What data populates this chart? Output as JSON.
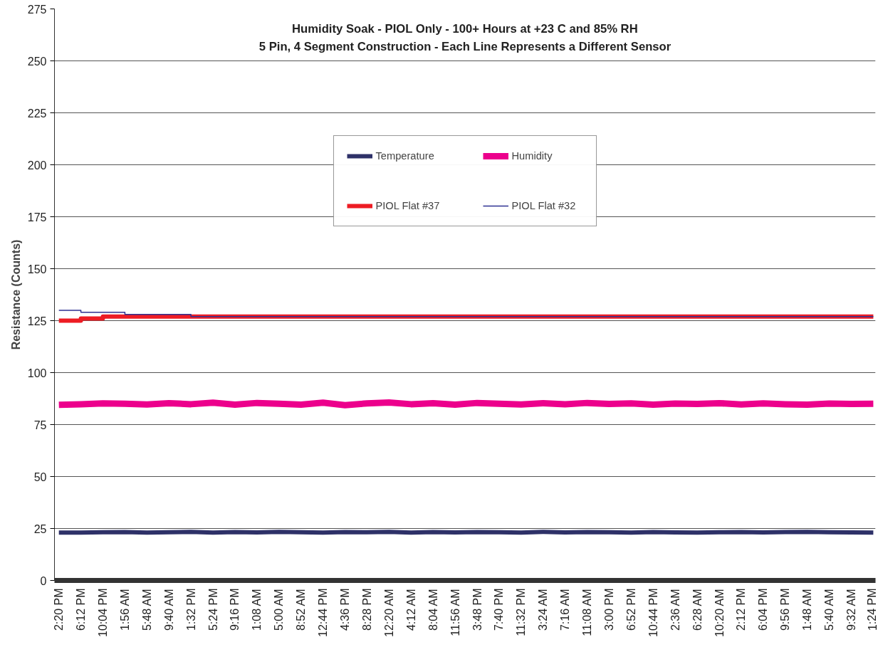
{
  "chart_data": {
    "type": "line",
    "title": "Humidity Soak - PIOL Only - 100+ Hours at +23 C and 85% RH",
    "subtitle": "5 Pin, 4 Segment Construction - Each Line Represents a Different Sensor",
    "ylabel": "Resistance (Counts)",
    "ylim": [
      0,
      275
    ],
    "yticks": [
      0,
      25,
      50,
      75,
      100,
      125,
      150,
      175,
      200,
      225,
      250,
      275
    ],
    "categories": [
      "2:20 PM",
      "6:12 PM",
      "10:04 PM",
      "1:56 AM",
      "5:48 AM",
      "9:40 AM",
      "1:32 PM",
      "5:24 PM",
      "9:16 PM",
      "1:08 AM",
      "5:00 AM",
      "8:52 AM",
      "12:44 PM",
      "4:36 PM",
      "8:28 PM",
      "12:20 AM",
      "4:12 AM",
      "8:04 AM",
      "11:56 AM",
      "3:48 PM",
      "7:40 PM",
      "11:32 PM",
      "3:24 AM",
      "7:16 AM",
      "11:08 AM",
      "3:00 PM",
      "6:52 PM",
      "10:44 PM",
      "2:36 AM",
      "6:28 AM",
      "10:20 AM",
      "2:12 PM",
      "6:04 PM",
      "9:56 PM",
      "1:48 AM",
      "5:40 AM",
      "9:32 AM",
      "1:24 PM"
    ],
    "series": [
      {
        "name": "Temperature",
        "color": "#2e3168",
        "values": [
          23,
          23,
          23.2,
          23.3,
          23,
          23.2,
          23.4,
          23,
          23.3,
          23.1,
          23.4,
          23.2,
          23,
          23.3,
          23.2,
          23.4,
          23,
          23.3,
          23.1,
          23.3,
          23.2,
          23,
          23.4,
          23.1,
          23.3,
          23.2,
          23,
          23.3,
          23.1,
          23,
          23.2,
          23.3,
          23.1,
          23.3,
          23.4,
          23.2,
          23.1,
          23
        ]
      },
      {
        "name": "Humidity",
        "color": "#ec008c",
        "values": [
          84.5,
          84.8,
          85.2,
          85,
          84.7,
          85.3,
          84.8,
          85.5,
          84.6,
          85.4,
          85,
          84.6,
          85.5,
          84.3,
          85.2,
          85.6,
          84.8,
          85.3,
          84.6,
          85.4,
          85,
          84.7,
          85.3,
          84.8,
          85.4,
          84.9,
          85.2,
          84.6,
          85.1,
          84.9,
          85.3,
          84.7,
          85.2,
          84.8,
          84.6,
          85.1,
          84.9,
          85
        ]
      },
      {
        "name": "PIOL Flat #37",
        "color": "#ed1c24",
        "type": "step",
        "values": [
          125,
          126,
          127,
          127,
          127,
          127,
          127,
          127,
          127,
          127,
          127,
          127,
          127,
          127,
          127,
          127,
          127,
          127,
          127,
          127,
          127,
          127,
          127,
          127,
          127,
          127,
          127,
          127,
          127,
          127,
          127,
          127,
          127,
          127,
          127,
          127,
          127,
          127
        ]
      },
      {
        "name": "PIOL Flat #32",
        "color": "#2e3192",
        "type": "step",
        "values": [
          130,
          129,
          129,
          128,
          128,
          128,
          127,
          127,
          127,
          127,
          127,
          127,
          127,
          127,
          127,
          127,
          127,
          127,
          127,
          127,
          127,
          127,
          127,
          127,
          127,
          127,
          127,
          127,
          127,
          127,
          127,
          127,
          127,
          127,
          127,
          127,
          127,
          127
        ]
      }
    ],
    "grid": "y",
    "legend": "top"
  }
}
